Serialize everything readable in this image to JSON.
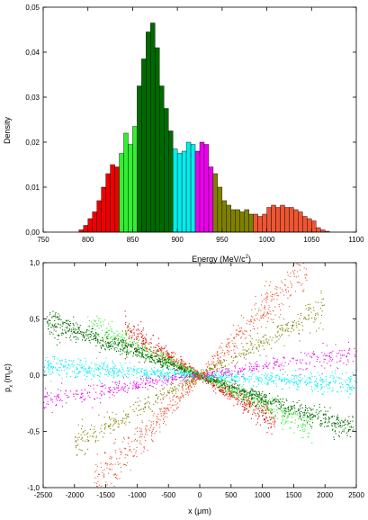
{
  "chart_data": [
    {
      "type": "bar",
      "xlabel": "Energy (MeV/c",
      "xlabel_sup": "2",
      "xlabel_close": ")",
      "ylabel": "Density",
      "xlim": [
        750,
        1100
      ],
      "ylim": [
        0,
        0.05
      ],
      "x_ticks": [
        "750",
        "800",
        "850",
        "900",
        "950",
        "1000",
        "1050",
        "1100"
      ],
      "y_ticks": [
        "0,00",
        "0,01",
        "0,02",
        "0,03",
        "0,04",
        "0,05"
      ],
      "bin_width": 5,
      "bins": [
        {
          "x": 790,
          "value": 0.0005,
          "color": "#ee0000"
        },
        {
          "x": 795,
          "value": 0.0015,
          "color": "#ee0000"
        },
        {
          "x": 800,
          "value": 0.003,
          "color": "#ee0000"
        },
        {
          "x": 805,
          "value": 0.0045,
          "color": "#ee0000"
        },
        {
          "x": 810,
          "value": 0.007,
          "color": "#ee0000"
        },
        {
          "x": 815,
          "value": 0.01,
          "color": "#ee0000"
        },
        {
          "x": 820,
          "value": 0.013,
          "color": "#ee0000"
        },
        {
          "x": 825,
          "value": 0.015,
          "color": "#ee0000"
        },
        {
          "x": 830,
          "value": 0.0145,
          "color": "#ee0000"
        },
        {
          "x": 835,
          "value": 0.0175,
          "color": "#33ee33"
        },
        {
          "x": 840,
          "value": 0.022,
          "color": "#33ee33"
        },
        {
          "x": 845,
          "value": 0.0195,
          "color": "#33ee33"
        },
        {
          "x": 850,
          "value": 0.0235,
          "color": "#33ee33"
        },
        {
          "x": 855,
          "value": 0.0325,
          "color": "#006a00"
        },
        {
          "x": 860,
          "value": 0.0385,
          "color": "#006a00"
        },
        {
          "x": 865,
          "value": 0.0445,
          "color": "#006a00"
        },
        {
          "x": 870,
          "value": 0.0465,
          "color": "#006a00"
        },
        {
          "x": 875,
          "value": 0.041,
          "color": "#006a00"
        },
        {
          "x": 880,
          "value": 0.0325,
          "color": "#006a00"
        },
        {
          "x": 885,
          "value": 0.0275,
          "color": "#006a00"
        },
        {
          "x": 890,
          "value": 0.0225,
          "color": "#006a00"
        },
        {
          "x": 895,
          "value": 0.0185,
          "color": "#00eeee"
        },
        {
          "x": 900,
          "value": 0.0175,
          "color": "#00eeee"
        },
        {
          "x": 905,
          "value": 0.018,
          "color": "#00eeee"
        },
        {
          "x": 910,
          "value": 0.02,
          "color": "#00eeee"
        },
        {
          "x": 915,
          "value": 0.0195,
          "color": "#00eeee"
        },
        {
          "x": 920,
          "value": 0.018,
          "color": "#ee00ee"
        },
        {
          "x": 925,
          "value": 0.02,
          "color": "#ee00ee"
        },
        {
          "x": 930,
          "value": 0.0195,
          "color": "#ee00ee"
        },
        {
          "x": 935,
          "value": 0.0145,
          "color": "#ee00ee"
        },
        {
          "x": 940,
          "value": 0.013,
          "color": "#808000"
        },
        {
          "x": 945,
          "value": 0.01,
          "color": "#808000"
        },
        {
          "x": 950,
          "value": 0.007,
          "color": "#808000"
        },
        {
          "x": 955,
          "value": 0.006,
          "color": "#808000"
        },
        {
          "x": 960,
          "value": 0.005,
          "color": "#808000"
        },
        {
          "x": 965,
          "value": 0.005,
          "color": "#808000"
        },
        {
          "x": 970,
          "value": 0.0045,
          "color": "#808000"
        },
        {
          "x": 975,
          "value": 0.005,
          "color": "#808000"
        },
        {
          "x": 980,
          "value": 0.004,
          "color": "#808000"
        },
        {
          "x": 985,
          "value": 0.004,
          "color": "#ee5533"
        },
        {
          "x": 990,
          "value": 0.0035,
          "color": "#ee5533"
        },
        {
          "x": 995,
          "value": 0.004,
          "color": "#ee5533"
        },
        {
          "x": 1000,
          "value": 0.0055,
          "color": "#ee5533"
        },
        {
          "x": 1005,
          "value": 0.006,
          "color": "#ee5533"
        },
        {
          "x": 1010,
          "value": 0.0055,
          "color": "#ee5533"
        },
        {
          "x": 1015,
          "value": 0.006,
          "color": "#ee5533"
        },
        {
          "x": 1020,
          "value": 0.0055,
          "color": "#ee5533"
        },
        {
          "x": 1025,
          "value": 0.0055,
          "color": "#ee5533"
        },
        {
          "x": 1030,
          "value": 0.005,
          "color": "#ee5533"
        },
        {
          "x": 1035,
          "value": 0.0045,
          "color": "#ee5533"
        },
        {
          "x": 1040,
          "value": 0.0035,
          "color": "#ee5533"
        },
        {
          "x": 1045,
          "value": 0.003,
          "color": "#ee5533"
        },
        {
          "x": 1050,
          "value": 0.0025,
          "color": "#ee5533"
        },
        {
          "x": 1055,
          "value": 0.001,
          "color": "#ee5533"
        },
        {
          "x": 1060,
          "value": 0.0005,
          "color": "#ee5533"
        },
        {
          "x": 1065,
          "value": 0.0002,
          "color": "#ee5533"
        }
      ],
      "grid": false
    },
    {
      "type": "scatter",
      "xlabel": "x (μm)",
      "ylabel_main": "p",
      "ylabel_sub": "x",
      "ylabel_rest": " (m",
      "ylabel_sub2": "0",
      "ylabel_end": "c)",
      "xlim": [
        -2500,
        2500
      ],
      "ylim": [
        -1.0,
        1.0
      ],
      "x_ticks": [
        "-2500",
        "-2000",
        "-1500",
        "-1000",
        "-500",
        "0",
        "500",
        "1000",
        "1500",
        "2000",
        "2500"
      ],
      "y_ticks": [
        "-1,0",
        "-0,5",
        "0,0",
        "0,5",
        "1,0"
      ],
      "grid": false,
      "series": [
        {
          "color": "#ee0000",
          "slope": -0.00033,
          "spread": 0.05,
          "xmax": 1200,
          "count": 600
        },
        {
          "color": "#33ee33",
          "slope": -0.00026,
          "spread": 0.05,
          "xmax": 1800,
          "count": 650
        },
        {
          "color": "#006a00",
          "slope": -0.0002,
          "spread": 0.045,
          "xmax": 2450,
          "count": 1100
        },
        {
          "color": "#00eeee",
          "slope": -3e-05,
          "spread": 0.045,
          "xmax": 2500,
          "count": 900
        },
        {
          "color": "#ee00ee",
          "slope": 8.5e-05,
          "spread": 0.045,
          "xmax": 2500,
          "count": 550
        },
        {
          "color": "#808000",
          "slope": 0.0003,
          "spread": 0.06,
          "xmax": 2000,
          "count": 550
        },
        {
          "color": "#ee5533",
          "slope": 0.00058,
          "spread": 0.09,
          "xmax": 1700,
          "count": 650
        }
      ]
    }
  ]
}
